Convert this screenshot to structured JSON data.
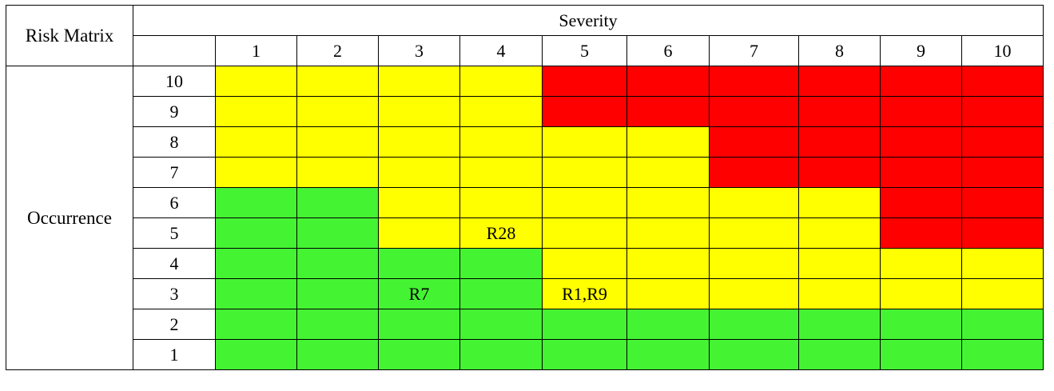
{
  "matrix": {
    "corner_label": "Risk Matrix",
    "severity_label": "Severity",
    "occurrence_label": "Occurrence",
    "severity_levels": [
      "1",
      "2",
      "3",
      "4",
      "5",
      "6",
      "7",
      "8",
      "9",
      "10"
    ],
    "occurrence_levels": [
      "10",
      "9",
      "8",
      "7",
      "6",
      "5",
      "4",
      "3",
      "2",
      "1"
    ],
    "colors": {
      "G": "#44f433",
      "Y": "#ffff00",
      "R": "#ff0000"
    },
    "grid": [
      [
        "Y",
        "Y",
        "Y",
        "Y",
        "R",
        "R",
        "R",
        "R",
        "R",
        "R"
      ],
      [
        "Y",
        "Y",
        "Y",
        "Y",
        "R",
        "R",
        "R",
        "R",
        "R",
        "R"
      ],
      [
        "Y",
        "Y",
        "Y",
        "Y",
        "Y",
        "Y",
        "R",
        "R",
        "R",
        "R"
      ],
      [
        "Y",
        "Y",
        "Y",
        "Y",
        "Y",
        "Y",
        "R",
        "R",
        "R",
        "R"
      ],
      [
        "G",
        "G",
        "Y",
        "Y",
        "Y",
        "Y",
        "Y",
        "Y",
        "R",
        "R"
      ],
      [
        "G",
        "G",
        "Y",
        "Y",
        "Y",
        "Y",
        "Y",
        "Y",
        "R",
        "R"
      ],
      [
        "G",
        "G",
        "G",
        "G",
        "Y",
        "Y",
        "Y",
        "Y",
        "Y",
        "Y"
      ],
      [
        "G",
        "G",
        "G",
        "G",
        "Y",
        "Y",
        "Y",
        "Y",
        "Y",
        "Y"
      ],
      [
        "G",
        "G",
        "G",
        "G",
        "G",
        "G",
        "G",
        "G",
        "G",
        "G"
      ],
      [
        "G",
        "G",
        "G",
        "G",
        "G",
        "G",
        "G",
        "G",
        "G",
        "G"
      ]
    ],
    "labels": [
      [
        "",
        "",
        "",
        "",
        "",
        "",
        "",
        "",
        "",
        ""
      ],
      [
        "",
        "",
        "",
        "",
        "",
        "",
        "",
        "",
        "",
        ""
      ],
      [
        "",
        "",
        "",
        "",
        "",
        "",
        "",
        "",
        "",
        ""
      ],
      [
        "",
        "",
        "",
        "",
        "",
        "",
        "",
        "",
        "",
        ""
      ],
      [
        "",
        "",
        "",
        "",
        "",
        "",
        "",
        "",
        "",
        ""
      ],
      [
        "",
        "",
        "",
        "R28",
        "",
        "",
        "",
        "",
        "",
        ""
      ],
      [
        "",
        "",
        "",
        "",
        "",
        "",
        "",
        "",
        "",
        ""
      ],
      [
        "",
        "",
        "R7",
        "",
        "R1,R9",
        "",
        "",
        "",
        "",
        ""
      ],
      [
        "",
        "",
        "",
        "",
        "",
        "",
        "",
        "",
        "",
        ""
      ],
      [
        "",
        "",
        "",
        "",
        "",
        "",
        "",
        "",
        "",
        ""
      ]
    ]
  }
}
